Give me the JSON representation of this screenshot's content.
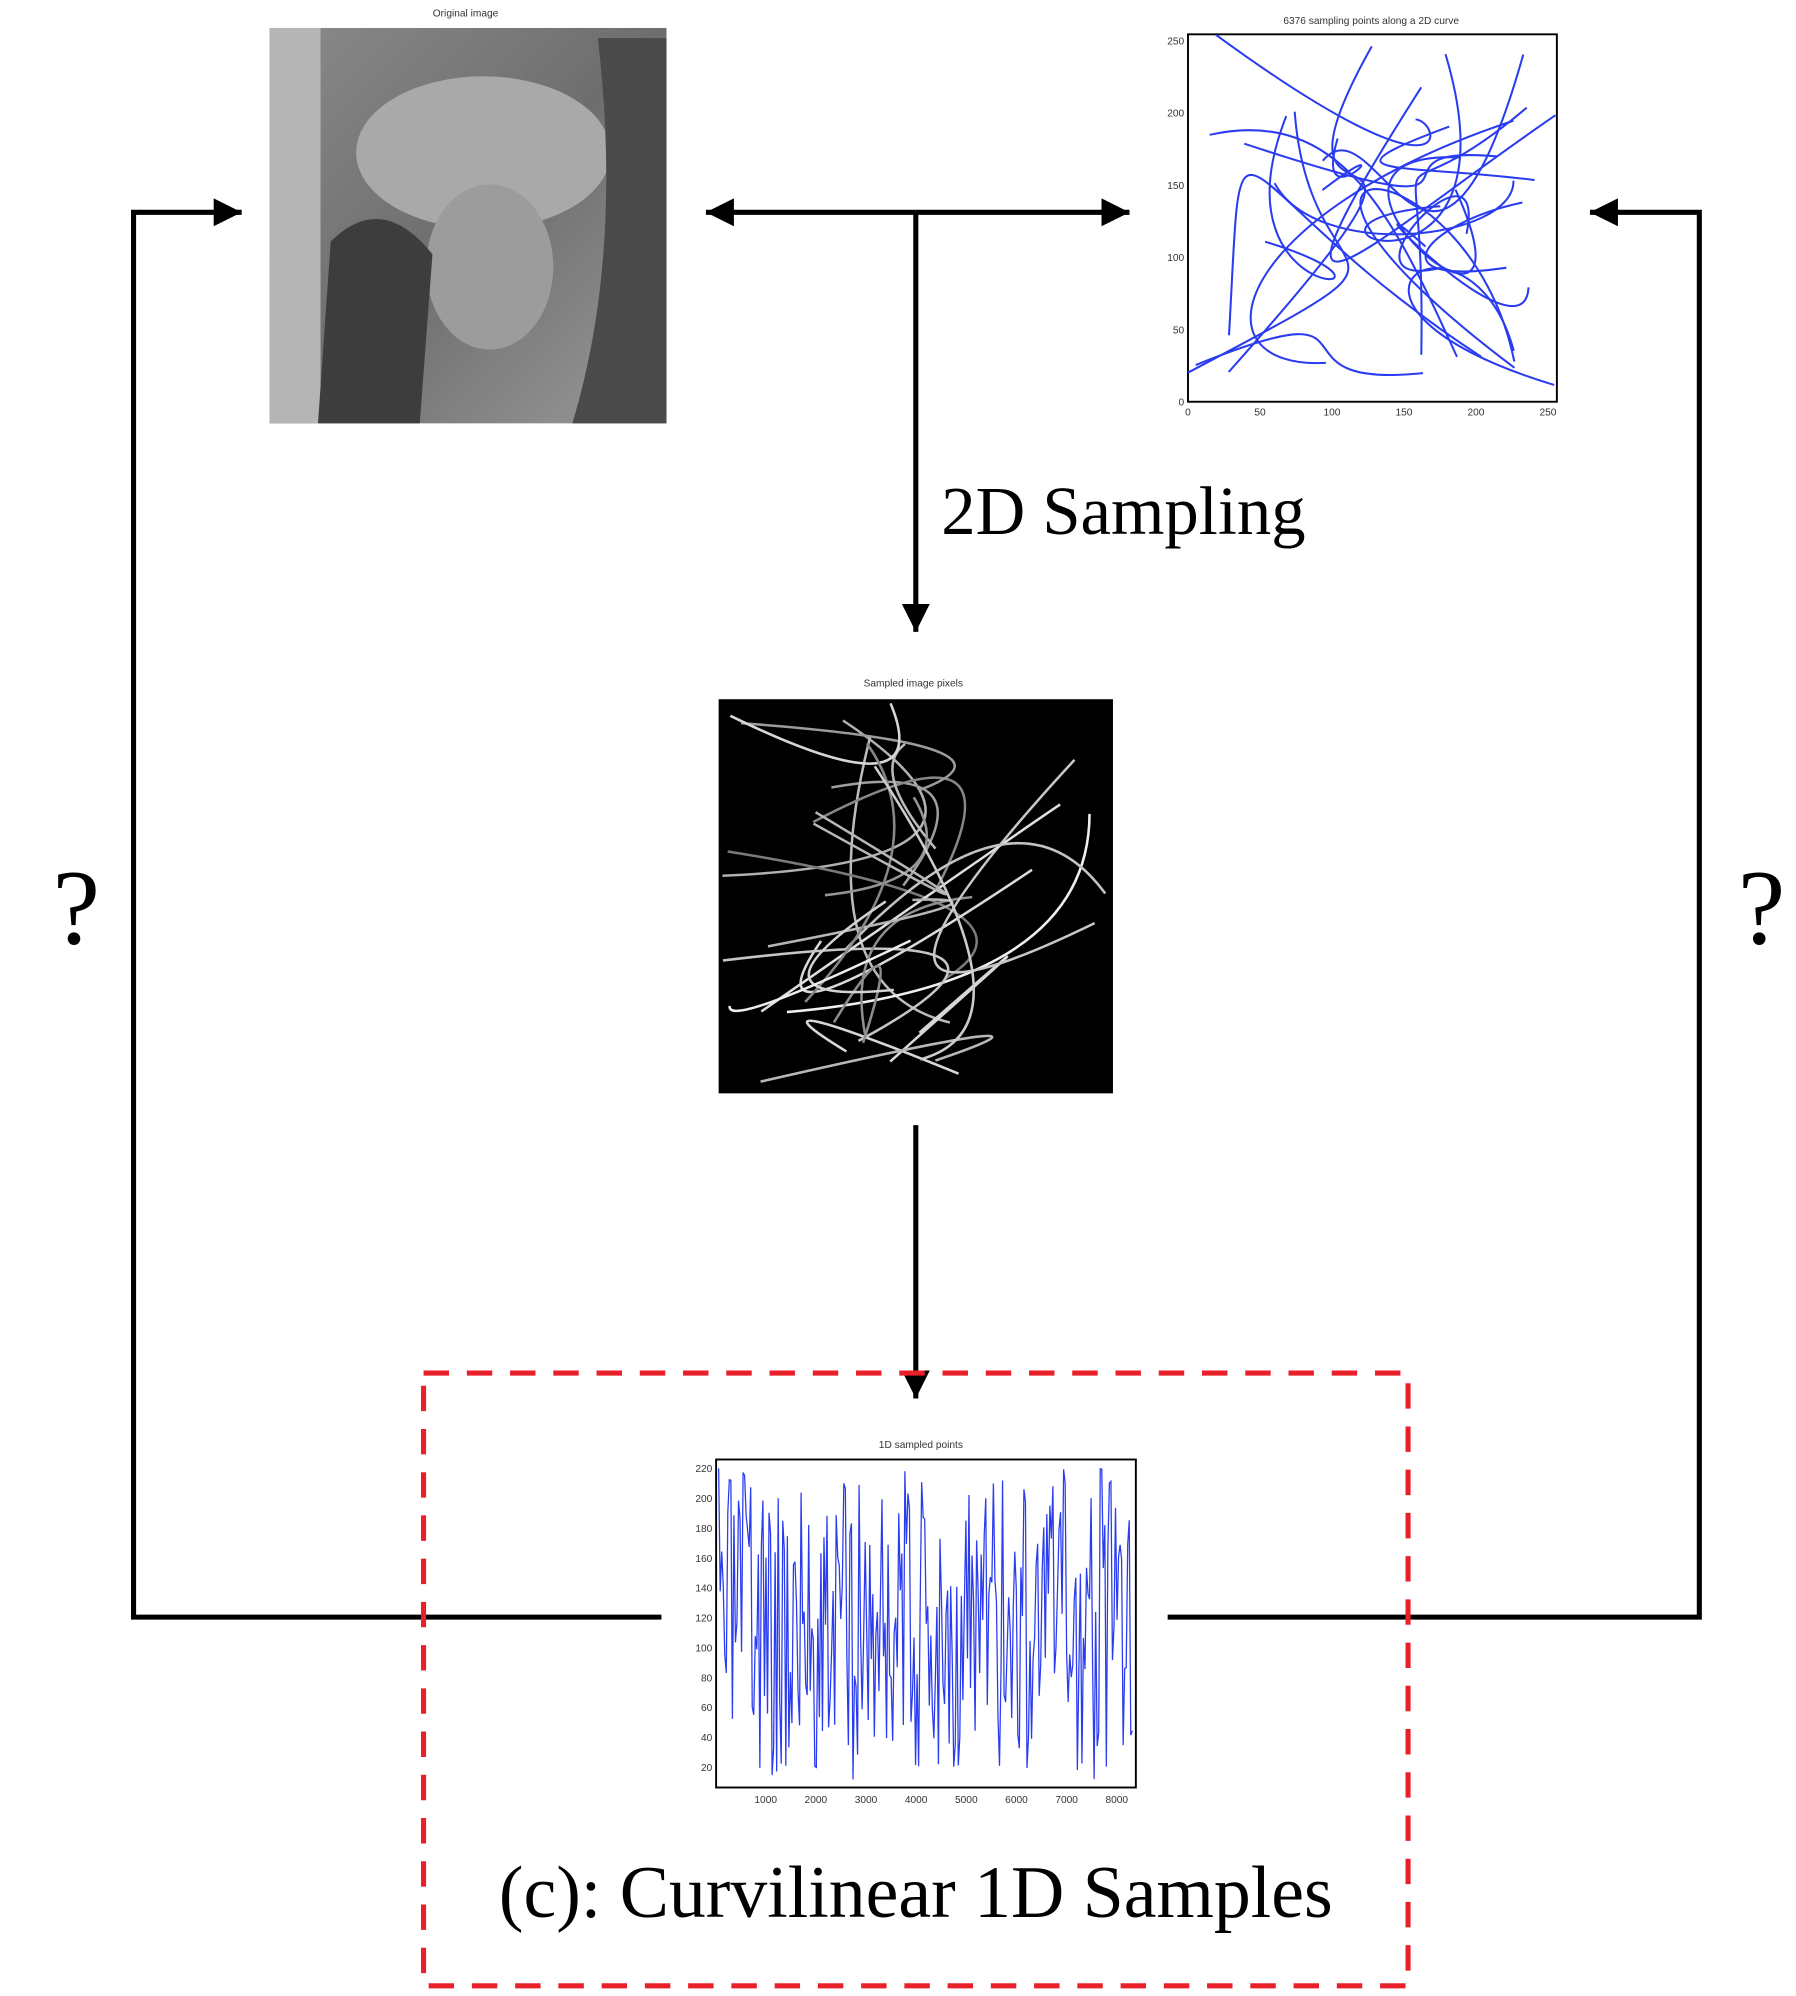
{
  "panels": {
    "original": {
      "title": "Original image"
    },
    "curve": {
      "title": "6376 sampling points along a 2D curve",
      "yticks": [
        250,
        200,
        150,
        100,
        50,
        0
      ],
      "xticks": [
        0,
        50,
        100,
        150,
        200,
        250
      ]
    },
    "sampled": {
      "title": "Sampled image pixels"
    },
    "signal": {
      "title": "1D sampled points",
      "yticks": [
        220,
        200,
        180,
        160,
        140,
        120,
        100,
        80,
        60,
        40,
        20
      ],
      "xticks": [
        1000,
        2000,
        3000,
        4000,
        5000,
        6000,
        7000,
        8000
      ]
    }
  },
  "labels": {
    "sampling": "2D Sampling",
    "left_question": "?",
    "right_question": "?",
    "caption": "(c): Curvilinear 1D Samples"
  }
}
